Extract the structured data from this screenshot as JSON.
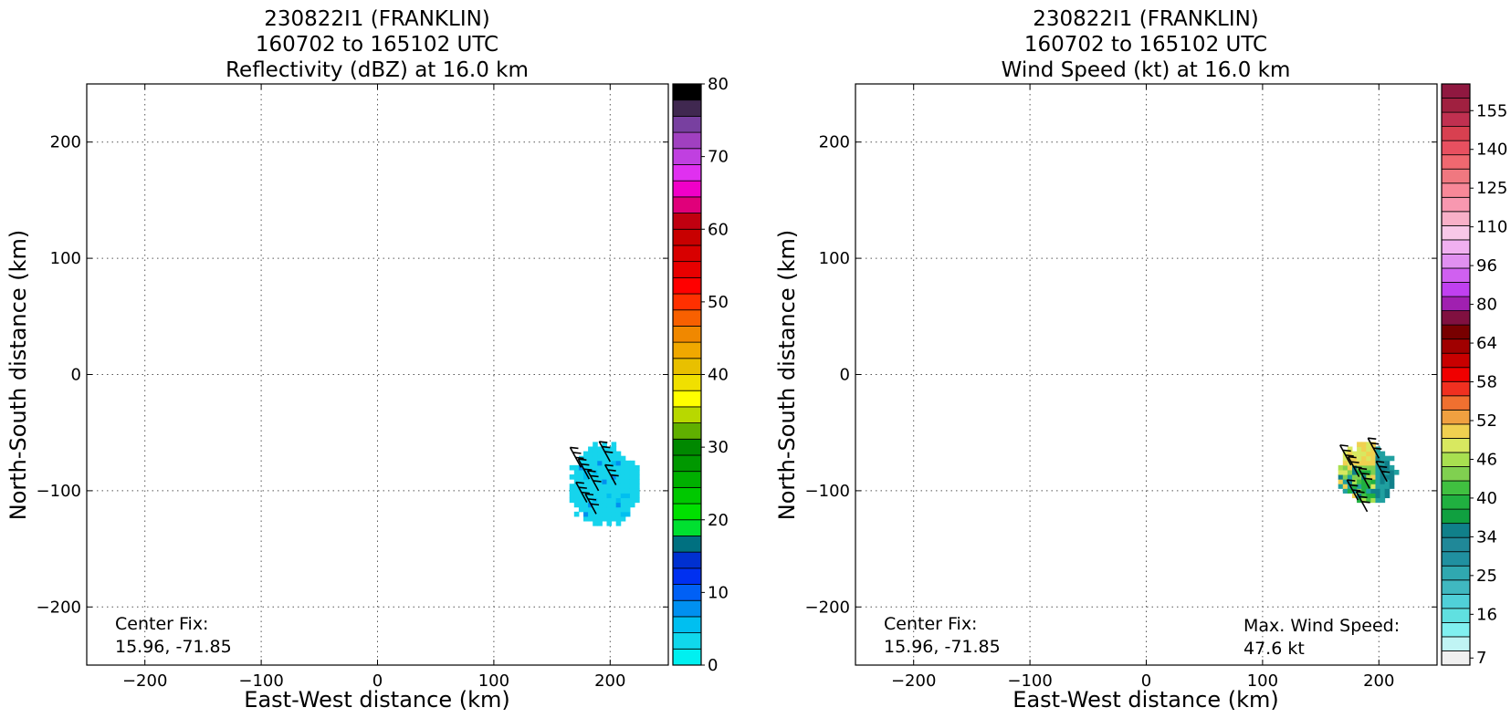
{
  "chart_data": [
    {
      "type": "heatmap",
      "title": [
        "230822I1 (FRANKLIN)",
        "160702 to 165102 UTC",
        "Reflectivity (dBZ) at 16.0 km"
      ],
      "xlabel": "East-West distance (km)",
      "ylabel": "North-South distance (km)",
      "xlim": [
        -250,
        250
      ],
      "ylim": [
        -250,
        250
      ],
      "xticks": [
        -200,
        -100,
        0,
        100,
        200
      ],
      "yticks": [
        200,
        100,
        0,
        -100,
        -200
      ],
      "xtick_labels": [
        "−200",
        "−100",
        "0",
        "100",
        "200"
      ],
      "ytick_labels": [
        "200",
        "100",
        "0",
        "−100",
        "−200"
      ],
      "grid": true,
      "annotation": [
        "Center Fix:",
        "15.96, -71.85"
      ],
      "echo_region": {
        "x_range": [
          165,
          225
        ],
        "y_range": [
          -130,
          -60
        ],
        "dominant_value_dbz": 3,
        "color": "#16d4ec"
      },
      "colorbar": {
        "min": 0,
        "max": 80,
        "step": 2.5,
        "ticks": [
          "0",
          "10",
          "20",
          "30",
          "40",
          "50",
          "60",
          "70",
          "80"
        ],
        "colors": [
          "#00f0f0",
          "#10d8ec",
          "#00bff0",
          "#0090f0",
          "#0060f5",
          "#0030f0",
          "#0030d0",
          "#007080",
          "#00e030",
          "#00e000",
          "#00c800",
          "#00b000",
          "#009800",
          "#008800",
          "#60b000",
          "#b8d800",
          "#ffff00",
          "#f0e000",
          "#e8c000",
          "#f0a800",
          "#f08800",
          "#f86000",
          "#ff3000",
          "#ff0000",
          "#e80000",
          "#d80000",
          "#c80000",
          "#c00010",
          "#e0007a",
          "#f000c8",
          "#e030f0",
          "#c040e0",
          "#a040c0",
          "#7840a0",
          "#402850",
          "#000000"
        ]
      },
      "barbs": [
        {
          "x": 175,
          "y": -80
        },
        {
          "x": 182,
          "y": -90
        },
        {
          "x": 190,
          "y": -100
        },
        {
          "x": 200,
          "y": -75
        },
        {
          "x": 205,
          "y": -95
        },
        {
          "x": 180,
          "y": -110
        },
        {
          "x": 188,
          "y": -120
        }
      ]
    },
    {
      "type": "heatmap",
      "title": [
        "230822I1 (FRANKLIN)",
        "160702 to 165102 UTC",
        "Wind Speed (kt) at 16.0 km"
      ],
      "xlabel": "East-West distance (km)",
      "ylabel": "North-South distance (km)",
      "xlim": [
        -250,
        250
      ],
      "ylim": [
        -250,
        250
      ],
      "xticks": [
        -200,
        -100,
        0,
        100,
        200
      ],
      "yticks": [
        200,
        100,
        0,
        -100,
        -200
      ],
      "xtick_labels": [
        "−200",
        "−100",
        "0",
        "100",
        "200"
      ],
      "ytick_labels": [
        "200",
        "100",
        "0",
        "−100",
        "−200"
      ],
      "grid": true,
      "annotation": [
        "Center Fix:",
        "15.96, -71.85"
      ],
      "annotation2": [
        "Max. Wind Speed:",
        "47.6 kt"
      ],
      "wind_region": {
        "x_range": [
          165,
          215
        ],
        "y_range": [
          -110,
          -60
        ],
        "max_kt": 47.6
      },
      "colorbar": {
        "ticks": [
          "7",
          "16",
          "25",
          "34",
          "40",
          "46",
          "52",
          "58",
          "64",
          "80",
          "96",
          "110",
          "125",
          "140",
          "155"
        ],
        "colors": [
          "#f0f0f0",
          "#c0f4f4",
          "#80f0f0",
          "#60e0e0",
          "#50d0d8",
          "#40b8c0",
          "#30a8b0",
          "#2090a0",
          "#208898",
          "#10808a",
          "#10a040",
          "#20b040",
          "#40c040",
          "#80d050",
          "#a8e050",
          "#d8e860",
          "#f0d050",
          "#f0a040",
          "#f07030",
          "#f03020",
          "#f00000",
          "#c80000",
          "#a00000",
          "#780000",
          "#801040",
          "#a020b0",
          "#c040f0",
          "#d060f0",
          "#e090f0",
          "#f0b0f0",
          "#f8c8e8",
          "#f8b0c8",
          "#f898b0",
          "#f88898",
          "#f07880",
          "#f06870",
          "#e85060",
          "#d84050",
          "#c03050",
          "#a02040",
          "#901840"
        ]
      },
      "barbs": [
        {
          "x": 176,
          "y": -78
        },
        {
          "x": 183,
          "y": -88
        },
        {
          "x": 192,
          "y": -98
        },
        {
          "x": 200,
          "y": -72
        },
        {
          "x": 207,
          "y": -92
        },
        {
          "x": 182,
          "y": -108
        },
        {
          "x": 190,
          "y": -118
        }
      ]
    }
  ]
}
